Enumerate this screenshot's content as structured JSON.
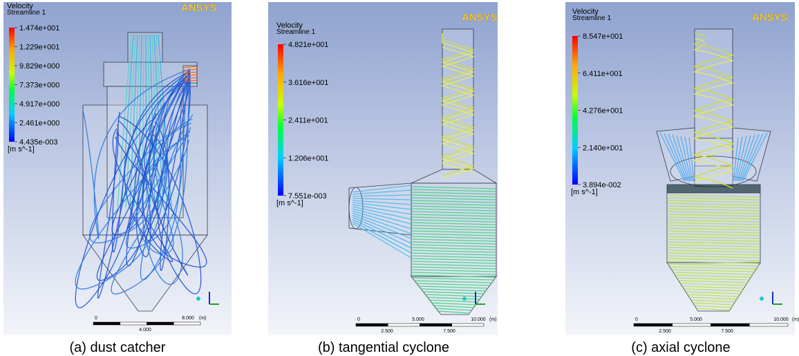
{
  "panels": [
    {
      "caption": "(a) dust catcher",
      "logo": "ANSYS",
      "legend": {
        "title": "Velocity",
        "variable": "Streamline 1",
        "ticks": [
          "1.474e+001",
          "1.229e+001",
          "9.829e+000",
          "7.373e+000",
          "4.917e+000",
          "2.461e+000",
          "4.435e-003"
        ],
        "unit": "[m s^-1]"
      },
      "scale": [
        "0",
        "4.000",
        "8.000",
        "(m)"
      ]
    },
    {
      "caption": "(b) tangential cyclone",
      "logo": "ANSYS",
      "legend": {
        "title": "Velocity",
        "variable": "Streamline 1",
        "ticks": [
          "4.821e+001",
          "3.616e+001",
          "2.411e+001",
          "1.206e+001",
          "7.551e-003"
        ],
        "unit": "[m s^-1]"
      },
      "scale": [
        "0",
        "2.500",
        "5.000",
        "7.500",
        "10.000",
        "(m)"
      ]
    },
    {
      "caption": "(c) axial cyclone",
      "logo": "ANSYS",
      "legend": {
        "title": "Velocity",
        "variable": "Streamline 1",
        "ticks": [
          "8.547e+001",
          "6.411e+001",
          "4.276e+001",
          "2.140e+001",
          "3.894e-002"
        ],
        "unit": "[m s^-1]"
      },
      "scale": [
        "0",
        "2.500",
        "5.000",
        "7.500",
        "10.000",
        "(m)"
      ]
    }
  ]
}
